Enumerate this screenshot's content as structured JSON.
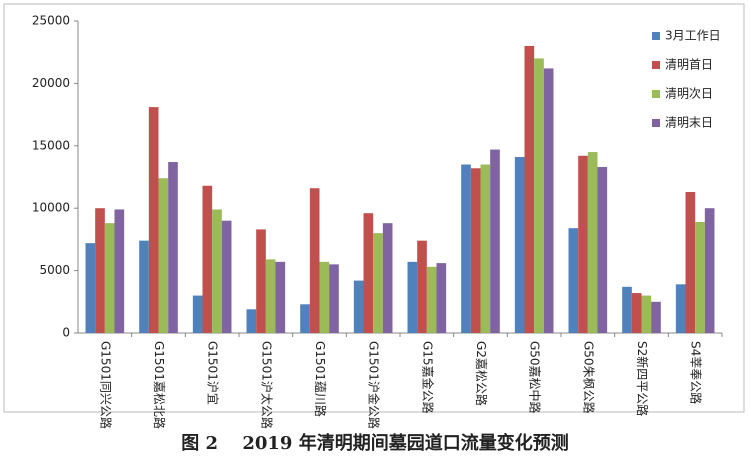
{
  "chart_data": {
    "type": "bar",
    "caption": "图 2　 2019 年清明期间墓园道口流量变化预测",
    "categories": [
      "G1501同兴公路",
      "G1501嘉松北路",
      "G1501沪宜",
      "G1501沪太公路",
      "G1501蕴川路",
      "G1501沪金公路",
      "G15嘉金公路",
      "G2嘉松公路",
      "G50嘉松中路",
      "G50朱枫公路",
      "S2新四平公路",
      "S4莘奉公路"
    ],
    "series": [
      {
        "name": "3月工作日",
        "color": "#4f81bd",
        "values": [
          7200,
          7400,
          3000,
          1900,
          2300,
          4200,
          5700,
          13500,
          14100,
          8400,
          3700,
          3900
        ]
      },
      {
        "name": "清明首日",
        "color": "#c0504d",
        "values": [
          10000,
          18100,
          11800,
          8300,
          11600,
          9600,
          7400,
          13200,
          23000,
          14200,
          3200,
          11300
        ]
      },
      {
        "name": "清明次日",
        "color": "#9bbb59",
        "values": [
          8800,
          12400,
          9900,
          5900,
          5700,
          8000,
          5300,
          13500,
          22000,
          14500,
          3000,
          8900
        ]
      },
      {
        "name": "清明末日",
        "color": "#8064a2",
        "values": [
          9900,
          13700,
          9000,
          5700,
          5500,
          8800,
          5600,
          14700,
          21200,
          13300,
          2500,
          10000
        ]
      }
    ],
    "ylim": [
      0,
      25000
    ],
    "yticks": [
      0,
      5000,
      10000,
      15000,
      20000,
      25000
    ],
    "grid": false,
    "legend": "upper right"
  }
}
